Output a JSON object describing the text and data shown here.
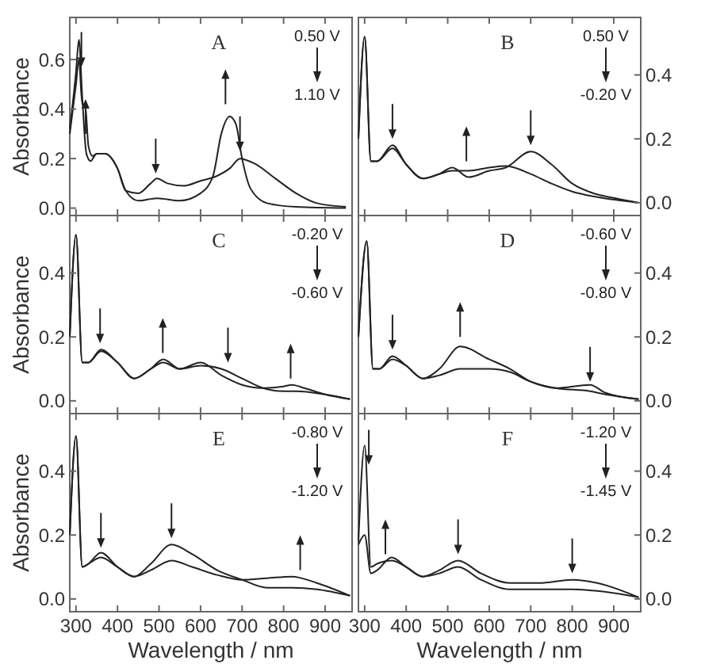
{
  "chart_data": [
    {
      "type": "line",
      "title": "A",
      "ylabel": "Absorbance",
      "annotations": [
        "0.50 V",
        "1.10 V"
      ],
      "xlim": [
        285,
        965
      ],
      "ylim": [
        -0.03,
        0.77
      ],
      "xticks": [
        300,
        400,
        500,
        600,
        700,
        800,
        900
      ],
      "yticks": [
        {
          "value": 0,
          "label": "0.0"
        },
        {
          "value": 0.2,
          "label": "0.2"
        },
        {
          "value": 0.4,
          "label": "0.4"
        },
        {
          "value": 0.6,
          "label": "0.6"
        }
      ],
      "tick_labels": "y",
      "series": [
        {
          "color": "#222222",
          "x": [
            285,
            300,
            307,
            315,
            325,
            335,
            350,
            370,
            400,
            420,
            450,
            480,
            495,
            520,
            560,
            600,
            640,
            670,
            695,
            730,
            780,
            830,
            880,
            950
          ],
          "values": [
            0.32,
            0.55,
            0.68,
            0.45,
            0.22,
            0.19,
            0.22,
            0.22,
            0.16,
            0.07,
            0.06,
            0.1,
            0.12,
            0.1,
            0.09,
            0.11,
            0.13,
            0.16,
            0.2,
            0.18,
            0.12,
            0.06,
            0.02,
            0.005
          ]
        },
        {
          "color": "#222222",
          "x": [
            285,
            300,
            307,
            315,
            322,
            330,
            340,
            350,
            370,
            400,
            420,
            450,
            495,
            550,
            600,
            630,
            650,
            670,
            685,
            700,
            720,
            760,
            830,
            950
          ],
          "values": [
            0.3,
            0.5,
            0.6,
            0.42,
            0.42,
            0.25,
            0.21,
            0.22,
            0.22,
            0.16,
            0.07,
            0.03,
            0.04,
            0.03,
            0.06,
            0.13,
            0.3,
            0.37,
            0.34,
            0.2,
            0.08,
            0.02,
            0.005,
            0
          ]
        }
      ]
    },
    {
      "type": "line",
      "title": "B",
      "annotations": [
        "0.50 V",
        "-0.20 V"
      ],
      "xlim": [
        285,
        965
      ],
      "ylim": [
        -0.04,
        0.58
      ],
      "xticks": [
        300,
        400,
        500,
        600,
        700,
        800,
        900
      ],
      "yticks": [
        {
          "value": 0,
          "label": "0.0"
        },
        {
          "value": 0.2,
          "label": "0.2"
        },
        {
          "value": 0.4,
          "label": "0.4"
        }
      ],
      "tick_labels": "y",
      "series": [
        {
          "color": "#222222",
          "x": [
            285,
            300,
            315,
            330,
            367,
            400,
            440,
            480,
            511,
            550,
            600,
            640,
            700,
            750,
            800,
            850,
            900,
            960
          ],
          "values": [
            0.2,
            0.52,
            0.13,
            0.13,
            0.18,
            0.12,
            0.076,
            0.09,
            0.11,
            0.08,
            0.1,
            0.11,
            0.16,
            0.12,
            0.06,
            0.03,
            0.015,
            0
          ]
        },
        {
          "color": "#222222",
          "x": [
            285,
            300,
            315,
            330,
            367,
            400,
            440,
            480,
            511,
            550,
            600,
            640,
            700,
            750,
            800,
            850,
            900,
            960
          ],
          "values": [
            0.2,
            0.52,
            0.13,
            0.13,
            0.17,
            0.12,
            0.076,
            0.09,
            0.1,
            0.1,
            0.11,
            0.115,
            0.09,
            0.06,
            0.035,
            0.02,
            0.01,
            0
          ]
        }
      ]
    },
    {
      "type": "line",
      "title": "C",
      "ylabel": "Absorbance",
      "annotations": [
        "-0.20 V",
        "-0.60 V"
      ],
      "xlim": [
        285,
        965
      ],
      "ylim": [
        -0.04,
        0.58
      ],
      "xticks": [
        300,
        400,
        500,
        600,
        700,
        800,
        900
      ],
      "yticks": [
        {
          "value": 0,
          "label": "0.0"
        },
        {
          "value": 0.2,
          "label": "0.2"
        },
        {
          "value": 0.4,
          "label": "0.4"
        }
      ],
      "tick_labels": "y",
      "series": [
        {
          "color": "#222222",
          "x": [
            285,
            300,
            315,
            330,
            360,
            400,
            440,
            480,
            510,
            550,
            600,
            650,
            700,
            750,
            800,
            830,
            900,
            960
          ],
          "values": [
            0.2,
            0.52,
            0.12,
            0.12,
            0.16,
            0.12,
            0.07,
            0.1,
            0.12,
            0.1,
            0.11,
            0.1,
            0.07,
            0.04,
            0.03,
            0.03,
            0.02,
            0.005
          ]
        },
        {
          "color": "#222222",
          "x": [
            285,
            300,
            315,
            330,
            360,
            400,
            440,
            480,
            510,
            550,
            600,
            650,
            700,
            750,
            800,
            820,
            850,
            900,
            960
          ],
          "values": [
            0.2,
            0.52,
            0.12,
            0.12,
            0.155,
            0.12,
            0.07,
            0.1,
            0.13,
            0.1,
            0.12,
            0.08,
            0.05,
            0.04,
            0.045,
            0.05,
            0.04,
            0.02,
            0.005
          ]
        }
      ]
    },
    {
      "type": "line",
      "title": "D",
      "annotations": [
        "-0.60 V",
        "-0.80 V"
      ],
      "xlim": [
        285,
        965
      ],
      "ylim": [
        -0.04,
        0.58
      ],
      "xticks": [
        300,
        400,
        500,
        600,
        700,
        800,
        900
      ],
      "yticks": [
        {
          "value": 0,
          "label": "0.0"
        },
        {
          "value": 0.2,
          "label": "0.2"
        },
        {
          "value": 0.4,
          "label": "0.4"
        }
      ],
      "tick_labels": "y",
      "series": [
        {
          "color": "#222222",
          "x": [
            285,
            305,
            320,
            335,
            367,
            400,
            440,
            480,
            530,
            600,
            650,
            700,
            760,
            843,
            880,
            960
          ],
          "values": [
            0.2,
            0.5,
            0.1,
            0.1,
            0.14,
            0.11,
            0.07,
            0.08,
            0.1,
            0.1,
            0.09,
            0.06,
            0.04,
            0.05,
            0.025,
            0.005
          ]
        },
        {
          "color": "#222222",
          "x": [
            285,
            305,
            320,
            335,
            367,
            400,
            440,
            480,
            530,
            600,
            650,
            700,
            760,
            843,
            880,
            960
          ],
          "values": [
            0.2,
            0.5,
            0.1,
            0.1,
            0.13,
            0.11,
            0.07,
            0.1,
            0.17,
            0.13,
            0.1,
            0.06,
            0.04,
            0.03,
            0.02,
            0.005
          ]
        }
      ]
    },
    {
      "type": "line",
      "title": "E",
      "ylabel": "Absorbance",
      "xlabel": "Wavelength / nm",
      "annotations": [
        "-0.80 V",
        "-1.20 V"
      ],
      "xlim": [
        285,
        965
      ],
      "ylim": [
        -0.04,
        0.58
      ],
      "xticks": [
        300,
        400,
        500,
        600,
        700,
        800,
        900
      ],
      "yticks": [
        {
          "value": 0,
          "label": "0.0"
        },
        {
          "value": 0.2,
          "label": "0.2"
        },
        {
          "value": 0.4,
          "label": "0.4"
        }
      ],
      "series": [
        {
          "color": "#222222",
          "x": [
            285,
            300,
            315,
            330,
            360,
            400,
            440,
            480,
            530,
            580,
            640,
            700,
            760,
            820,
            880,
            960
          ],
          "values": [
            0.2,
            0.51,
            0.1,
            0.11,
            0.145,
            0.1,
            0.07,
            0.11,
            0.17,
            0.14,
            0.09,
            0.06,
            0.035,
            0.035,
            0.03,
            0.01
          ]
        },
        {
          "color": "#222222",
          "x": [
            285,
            300,
            315,
            330,
            360,
            400,
            440,
            480,
            530,
            580,
            640,
            700,
            760,
            820,
            880,
            960
          ],
          "values": [
            0.2,
            0.51,
            0.1,
            0.11,
            0.13,
            0.1,
            0.07,
            0.09,
            0.12,
            0.1,
            0.075,
            0.06,
            0.065,
            0.07,
            0.05,
            0.01
          ]
        }
      ]
    },
    {
      "type": "line",
      "title": "F",
      "xlabel": "Wavelength / nm",
      "annotations": [
        "-1.20 V",
        "-1.45 V"
      ],
      "xlim": [
        285,
        965
      ],
      "ylim": [
        -0.04,
        0.58
      ],
      "xticks": [
        300,
        400,
        500,
        600,
        700,
        800,
        900
      ],
      "yticks": [
        {
          "value": 0,
          "label": "0.0"
        },
        {
          "value": 0.2,
          "label": "0.2"
        },
        {
          "value": 0.4,
          "label": "0.4"
        }
      ],
      "series": [
        {
          "color": "#222222",
          "x": [
            285,
            300,
            315,
            330,
            365,
            400,
            440,
            480,
            525,
            580,
            650,
            720,
            800,
            860,
            960
          ],
          "values": [
            0.18,
            0.48,
            0.1,
            0.11,
            0.12,
            0.1,
            0.07,
            0.09,
            0.12,
            0.08,
            0.05,
            0.05,
            0.06,
            0.05,
            0.005
          ]
        },
        {
          "color": "#222222",
          "x": [
            285,
            300,
            315,
            330,
            365,
            400,
            440,
            480,
            525,
            580,
            650,
            720,
            800,
            860,
            960
          ],
          "values": [
            0.17,
            0.2,
            0.08,
            0.09,
            0.13,
            0.1,
            0.07,
            0.08,
            0.1,
            0.06,
            0.03,
            0.03,
            0.03,
            0.025,
            0.005
          ]
        }
      ]
    }
  ]
}
